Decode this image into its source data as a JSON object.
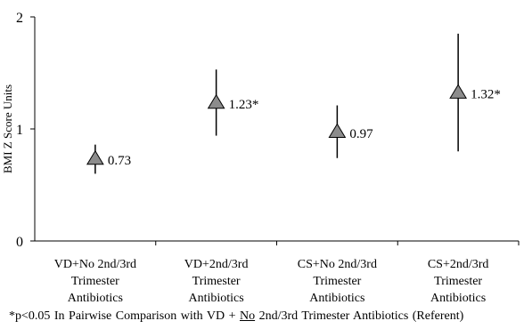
{
  "chart_data": {
    "type": "scatter",
    "ylabel": "BMI Z Score Units",
    "ylim": [
      0,
      2
    ],
    "yticks": [
      0,
      1,
      2
    ],
    "categories": [
      [
        "VD+No 2nd/3rd",
        "Trimester",
        "Antibiotics"
      ],
      [
        "VD+2nd/3rd",
        "Trimester",
        "Antibiotics"
      ],
      [
        "CS+No 2nd/3rd",
        "Trimester",
        "Antibiotics"
      ],
      [
        "CS+2nd/3rd",
        "Trimester",
        "Antibiotics"
      ]
    ],
    "points": [
      {
        "value": 0.73,
        "lower": 0.6,
        "upper": 0.86,
        "label": "0.73"
      },
      {
        "value": 1.23,
        "lower": 0.94,
        "upper": 1.53,
        "label": "1.23*"
      },
      {
        "value": 0.97,
        "lower": 0.74,
        "upper": 1.21,
        "label": "0.97"
      },
      {
        "value": 1.32,
        "lower": 0.8,
        "upper": 1.85,
        "label": "1.32*"
      }
    ],
    "marker": "triangle",
    "marker_color": "#8c8c8c",
    "line_color": "#000000",
    "grid": false,
    "legend": "none"
  },
  "footnote": {
    "prefix": "*p<0.05 In Pairwise Comparison with VD + ",
    "underlined": "No",
    "suffix": " 2nd/3rd Trimester Antibiotics (Referent)"
  }
}
